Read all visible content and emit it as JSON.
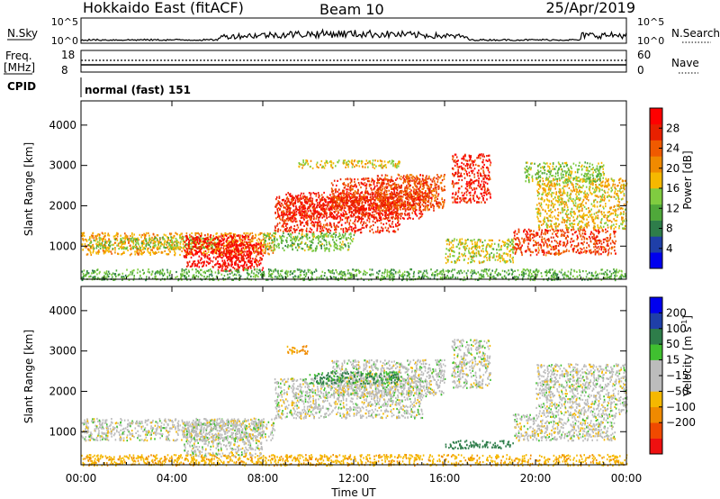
{
  "header": {
    "station": "Hokkaido East (fitACF)",
    "beam": "Beam 10",
    "date": "25/Apr/2019"
  },
  "top_panels": {
    "nsky_label": "N.Sky",
    "nsky_ticks": [
      "10^5",
      "10^0"
    ],
    "nsearch_label": "N.Search",
    "nsearch_ticks": [
      "10^5",
      "10^0"
    ],
    "freq_label_1": "Freq.",
    "freq_label_2": "[MHz]",
    "freq_ticks": [
      "18",
      "8"
    ],
    "nave_label": "Nave",
    "nave_ticks": [
      "60",
      "0"
    ],
    "cpid_label": "CPID",
    "cpid_text": "normal (fast) 151"
  },
  "colors": {
    "power": [
      "#0000ee",
      "#1f3fa8",
      "#2e7d4a",
      "#4fa83a",
      "#80cc40",
      "#f5b800",
      "#f08a00",
      "#f05a00",
      "#e82000",
      "#ff0000"
    ],
    "velocity": [
      "#ee1010",
      "#f04a00",
      "#f08a00",
      "#f5b800",
      "#bcbcbc",
      "#bcbcbc",
      "#40c030",
      "#2e7d4a",
      "#1f3fa8",
      "#0000ee"
    ],
    "ground": "#bcbcbc"
  },
  "chart_data": [
    {
      "type": "heatmap",
      "name": "power",
      "xlabel": "",
      "ylabel": "Slant Range [km]",
      "x_ticks": [
        "00:00",
        "04:00",
        "08:00",
        "12:00",
        "16:00",
        "20:00",
        "00:00"
      ],
      "xlim_hours": [
        0,
        24
      ],
      "y_ticks": [
        1000,
        2000,
        3000,
        4000
      ],
      "ylim": [
        180,
        4600
      ],
      "colorbar_label": "Power [dB]",
      "colorbar_ticks": [
        4,
        8,
        12,
        16,
        20,
        24,
        28
      ],
      "colorbar_range": [
        0,
        32
      ],
      "regions": [
        {
          "t": [
            0.0,
            8.5
          ],
          "r": [
            800,
            1350
          ],
          "v": 20
        },
        {
          "t": [
            0.3,
            6.0
          ],
          "r": [
            950,
            1250
          ],
          "v": 14
        },
        {
          "t": [
            4.5,
            7.5
          ],
          "r": [
            500,
            1300
          ],
          "v": 30
        },
        {
          "t": [
            6.0,
            8.0
          ],
          "r": [
            400,
            1100
          ],
          "v": 29
        },
        {
          "t": [
            8.5,
            14.0
          ],
          "r": [
            1350,
            2250
          ],
          "v": 27
        },
        {
          "t": [
            9.0,
            15.0
          ],
          "r": [
            1700,
            2350
          ],
          "v": 28
        },
        {
          "t": [
            11.0,
            15.5
          ],
          "r": [
            1900,
            2700
          ],
          "v": 26
        },
        {
          "t": [
            13.0,
            16.0
          ],
          "r": [
            1950,
            2800
          ],
          "v": 25
        },
        {
          "t": [
            16.3,
            18.0
          ],
          "r": [
            2100,
            3300
          ],
          "v": 28
        },
        {
          "t": [
            9.5,
            14.0
          ],
          "r": [
            2950,
            3150
          ],
          "v": 17
        },
        {
          "t": [
            19.0,
            23.5
          ],
          "r": [
            800,
            1450
          ],
          "v": 26
        },
        {
          "t": [
            20.0,
            24.0
          ],
          "r": [
            1450,
            2700
          ],
          "v": 18
        },
        {
          "t": [
            19.5,
            23.0
          ],
          "r": [
            2600,
            3100
          ],
          "v": 14
        },
        {
          "t": [
            0.0,
            24.0
          ],
          "r": [
            180,
            450
          ],
          "v": 12
        },
        {
          "t": [
            8.0,
            12.0
          ],
          "r": [
            900,
            1350
          ],
          "v": 13
        },
        {
          "t": [
            16.0,
            19.0
          ],
          "r": [
            600,
            1200
          ],
          "v": 16
        }
      ]
    },
    {
      "type": "heatmap",
      "name": "velocity",
      "xlabel": "Time UT",
      "ylabel": "Slant Range [km]",
      "x_ticks": [
        "00:00",
        "04:00",
        "08:00",
        "12:00",
        "16:00",
        "20:00",
        "00:00"
      ],
      "xlim_hours": [
        0,
        24
      ],
      "y_ticks": [
        1000,
        2000,
        3000,
        4000
      ],
      "ylim": [
        180,
        4600
      ],
      "colorbar_label": "Velocity [m s^-1]",
      "colorbar_ticks": [
        "200",
        "100",
        "50",
        "15",
        "−15",
        "−50",
        "−100",
        "−200"
      ],
      "colorbar_range": [
        -250,
        250
      ],
      "regions": [
        {
          "t": [
            0.0,
            8.5
          ],
          "r": [
            800,
            1350
          ],
          "v": 0
        },
        {
          "t": [
            4.5,
            8.0
          ],
          "r": [
            400,
            1300
          ],
          "v": 0
        },
        {
          "t": [
            8.5,
            15.0
          ],
          "r": [
            1350,
            2350
          ],
          "v": 0
        },
        {
          "t": [
            11.0,
            16.0
          ],
          "r": [
            1900,
            2800
          ],
          "v": 0
        },
        {
          "t": [
            16.3,
            18.0
          ],
          "r": [
            2100,
            3300
          ],
          "v": 0
        },
        {
          "t": [
            19.0,
            23.5
          ],
          "r": [
            800,
            1450
          ],
          "v": 0
        },
        {
          "t": [
            20.0,
            24.0
          ],
          "r": [
            1450,
            2700
          ],
          "v": 0
        },
        {
          "t": [
            10.0,
            14.0
          ],
          "r": [
            2200,
            2500
          ],
          "v": 60
        },
        {
          "t": [
            9.0,
            10.0
          ],
          "r": [
            2950,
            3150
          ],
          "v": -60
        },
        {
          "t": [
            0.0,
            24.0
          ],
          "r": [
            180,
            450
          ],
          "v": -40
        },
        {
          "t": [
            16.0,
            19.0
          ],
          "r": [
            600,
            800
          ],
          "v": 70
        }
      ]
    }
  ]
}
